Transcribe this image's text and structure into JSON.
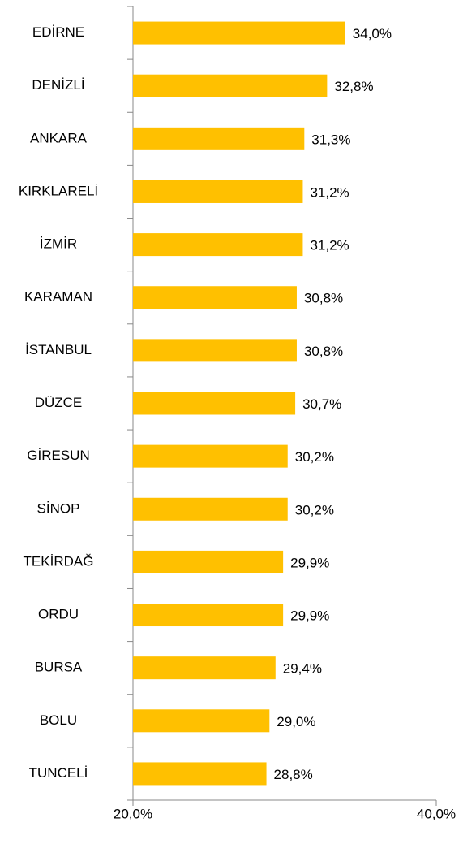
{
  "chart_data": {
    "type": "bar",
    "orientation": "horizontal",
    "categories": [
      "EDİRNE",
      "DENİZLİ",
      "ANKARA",
      "KIRKLARELİ",
      "İZMİR",
      "KARAMAN",
      "İSTANBUL",
      "DÜZCE",
      "GİRESUN",
      "SİNOP",
      "TEKİRDAĞ",
      "ORDU",
      "BURSA",
      "BOLU",
      "TUNCELİ"
    ],
    "values": [
      34.0,
      32.8,
      31.3,
      31.2,
      31.2,
      30.8,
      30.8,
      30.7,
      30.2,
      30.2,
      29.9,
      29.9,
      29.4,
      29.0,
      28.8
    ],
    "value_labels": [
      "34,0%",
      "32,8%",
      "31,3%",
      "31,2%",
      "31,2%",
      "30,8%",
      "30,8%",
      "30,7%",
      "30,2%",
      "30,2%",
      "29,9%",
      "29,9%",
      "29,4%",
      "29,0%",
      "28,8%"
    ],
    "color": "#FFC000",
    "xlim": [
      20,
      40
    ],
    "xticks": [
      {
        "value": 20,
        "label": "20,0%"
      },
      {
        "value": 40,
        "label": "40,0%"
      }
    ]
  }
}
